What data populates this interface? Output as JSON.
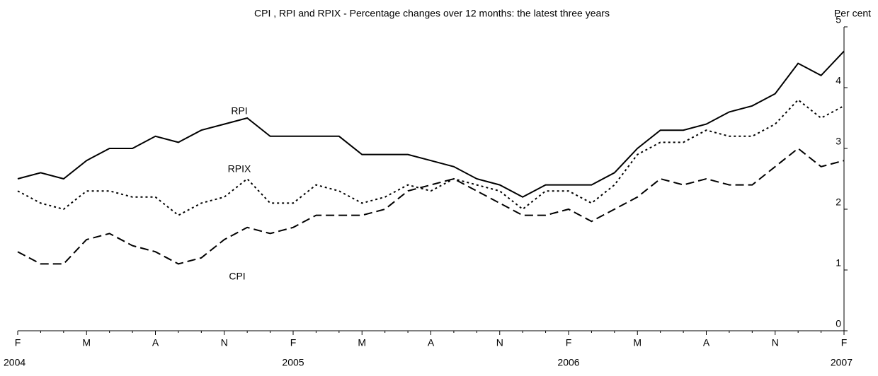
{
  "chart_data": {
    "type": "line",
    "title": "CPI , RPI and RPIX - Percentage changes over 12 months: the latest three years",
    "y_axis_label": "Per cent",
    "categories": [
      "F",
      null,
      null,
      "M",
      null,
      null,
      "A",
      null,
      null,
      "N",
      null,
      null,
      "F",
      null,
      null,
      "M",
      null,
      null,
      "A",
      null,
      null,
      "N",
      null,
      null,
      "F",
      null,
      null,
      "M",
      null,
      null,
      "A",
      null,
      null,
      "N",
      null,
      null,
      "F"
    ],
    "category_years": [
      "2004",
      null,
      null,
      null,
      null,
      null,
      null,
      null,
      null,
      null,
      null,
      null,
      "2005",
      null,
      null,
      null,
      null,
      null,
      null,
      null,
      null,
      null,
      null,
      null,
      "2006",
      null,
      null,
      null,
      null,
      null,
      null,
      null,
      null,
      null,
      null,
      null,
      "2007"
    ],
    "ylim": [
      0,
      5
    ],
    "yticks": [
      0,
      1,
      2,
      3,
      4,
      5
    ],
    "series": [
      {
        "name": "RPI",
        "color": "#000000",
        "dash": "solid",
        "values": [
          2.5,
          2.6,
          2.5,
          2.8,
          3.0,
          3.0,
          3.2,
          3.1,
          3.3,
          3.4,
          3.5,
          3.2,
          3.2,
          3.2,
          3.2,
          2.9,
          2.9,
          2.9,
          2.8,
          2.7,
          2.5,
          2.4,
          2.2,
          2.4,
          2.4,
          2.4,
          2.6,
          3.0,
          3.3,
          3.3,
          3.4,
          3.6,
          3.7,
          3.9,
          4.4,
          4.2,
          4.6
        ]
      },
      {
        "name": "RPIX",
        "color": "#000000",
        "dash": "dotted",
        "values": [
          2.3,
          2.1,
          2.0,
          2.3,
          2.3,
          2.2,
          2.2,
          1.9,
          2.1,
          2.2,
          2.5,
          2.1,
          2.1,
          2.4,
          2.3,
          2.1,
          2.2,
          2.4,
          2.3,
          2.5,
          2.4,
          2.3,
          2.0,
          2.3,
          2.3,
          2.1,
          2.4,
          2.9,
          3.1,
          3.1,
          3.3,
          3.2,
          3.2,
          3.4,
          3.8,
          3.5,
          3.7
        ]
      },
      {
        "name": "CPI",
        "color": "#000000",
        "dash": "dashed",
        "values": [
          1.3,
          1.1,
          1.1,
          1.5,
          1.6,
          1.4,
          1.3,
          1.1,
          1.2,
          1.5,
          1.7,
          1.6,
          1.7,
          1.9,
          1.9,
          1.9,
          2.0,
          2.3,
          2.4,
          2.5,
          2.3,
          2.1,
          1.9,
          1.9,
          2.0,
          1.8,
          2.0,
          2.2,
          2.5,
          2.4,
          2.5,
          2.4,
          2.4,
          2.7,
          3.0,
          2.7,
          2.8
        ]
      }
    ]
  }
}
